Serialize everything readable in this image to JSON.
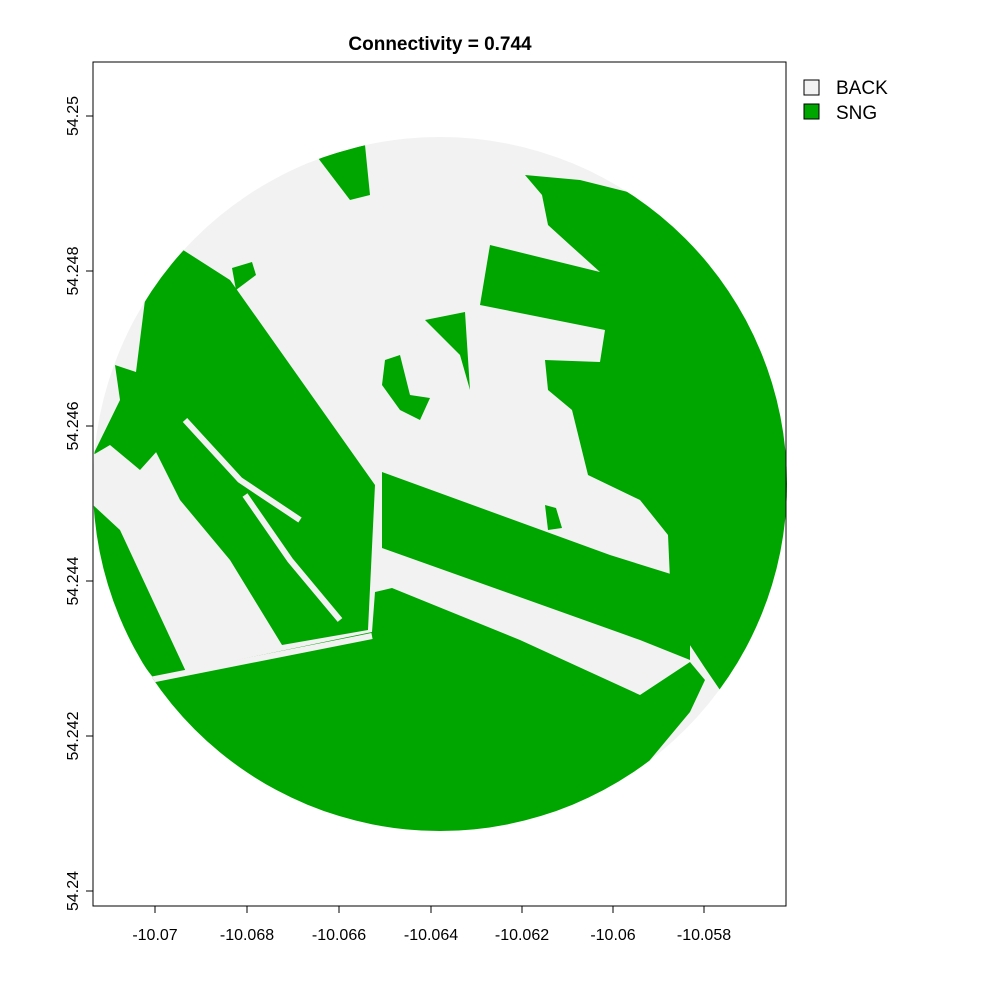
{
  "title": "Connectivity = 0.744",
  "legend": [
    {
      "label": "BACK",
      "color": "#f2f2f2"
    },
    {
      "label": "SNG",
      "color": "#00a600"
    }
  ],
  "x_axis": {
    "ticks": [
      "-10.07",
      "-10.068",
      "-10.066",
      "-10.064",
      "-10.062",
      "-10.06",
      "-10.058"
    ]
  },
  "y_axis": {
    "ticks": [
      "54.24",
      "54.242",
      "54.244",
      "54.246",
      "54.248",
      "54.25"
    ]
  },
  "colors": {
    "background_class": "#f2f2f2",
    "sng_class": "#00a600",
    "frame": "#000000"
  }
}
